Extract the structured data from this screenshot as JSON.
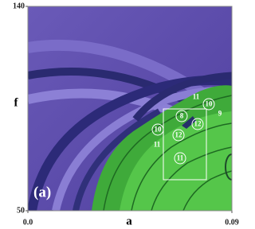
{
  "chart_data": {
    "type": "region-map",
    "xlabel": "a",
    "ylabel": "f",
    "panel_label": "(a)",
    "xlim": [
      0,
      0.09
    ],
    "ylim": [
      50,
      140
    ],
    "xticks": [
      {
        "value": 0,
        "label": "0.0"
      },
      0.09
    ],
    "yticks": [
      50,
      140
    ],
    "annotations": [
      {
        "text": "11",
        "circled": false
      },
      {
        "text": "10",
        "circled": true
      },
      {
        "text": "9",
        "circled": false
      },
      {
        "text": "8",
        "circled": true
      },
      {
        "text": "12",
        "circled": true
      },
      {
        "text": "10",
        "circled": true
      },
      {
        "text": "12",
        "circled": true
      },
      {
        "text": "11",
        "circled": false
      },
      {
        "text": "11",
        "circled": true
      }
    ]
  }
}
